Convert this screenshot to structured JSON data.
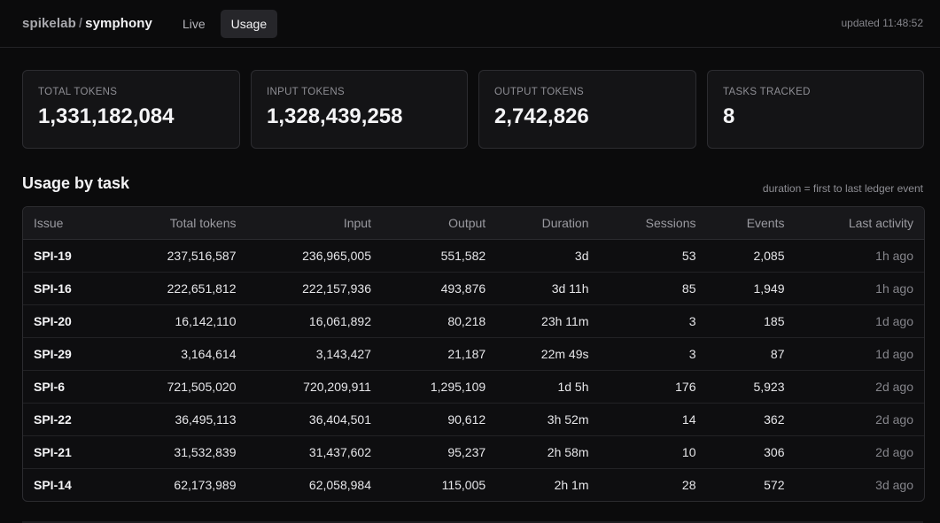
{
  "header": {
    "org": "spikelab",
    "separator": "/",
    "project": "symphony",
    "tabs": [
      {
        "label": "Live",
        "active": false
      },
      {
        "label": "Usage",
        "active": true
      }
    ],
    "updated": "updated 11:48:52"
  },
  "stats": [
    {
      "label": "TOTAL TOKENS",
      "value": "1,331,182,084"
    },
    {
      "label": "INPUT TOKENS",
      "value": "1,328,439,258"
    },
    {
      "label": "OUTPUT TOKENS",
      "value": "2,742,826"
    },
    {
      "label": "TASKS TRACKED",
      "value": "8"
    }
  ],
  "section": {
    "title": "Usage by task",
    "note": "duration = first to last ledger event"
  },
  "table": {
    "columns": [
      "Issue",
      "Total tokens",
      "Input",
      "Output",
      "Duration",
      "Sessions",
      "Events",
      "Last activity"
    ],
    "rows": [
      [
        "SPI-19",
        "237,516,587",
        "236,965,005",
        "551,582",
        "3d",
        "53",
        "2,085",
        "1h ago"
      ],
      [
        "SPI-16",
        "222,651,812",
        "222,157,936",
        "493,876",
        "3d 11h",
        "85",
        "1,949",
        "1h ago"
      ],
      [
        "SPI-20",
        "16,142,110",
        "16,061,892",
        "80,218",
        "23h 11m",
        "3",
        "185",
        "1d ago"
      ],
      [
        "SPI-29",
        "3,164,614",
        "3,143,427",
        "21,187",
        "22m 49s",
        "3",
        "87",
        "1d ago"
      ],
      [
        "SPI-6",
        "721,505,020",
        "720,209,911",
        "1,295,109",
        "1d 5h",
        "176",
        "5,923",
        "2d ago"
      ],
      [
        "SPI-22",
        "36,495,113",
        "36,404,501",
        "90,612",
        "3h 52m",
        "14",
        "362",
        "2d ago"
      ],
      [
        "SPI-21",
        "31,532,839",
        "31,437,602",
        "95,237",
        "2h 58m",
        "10",
        "306",
        "2d ago"
      ],
      [
        "SPI-14",
        "62,173,989",
        "62,058,984",
        "115,005",
        "2h 1m",
        "28",
        "572",
        "3d ago"
      ]
    ]
  }
}
